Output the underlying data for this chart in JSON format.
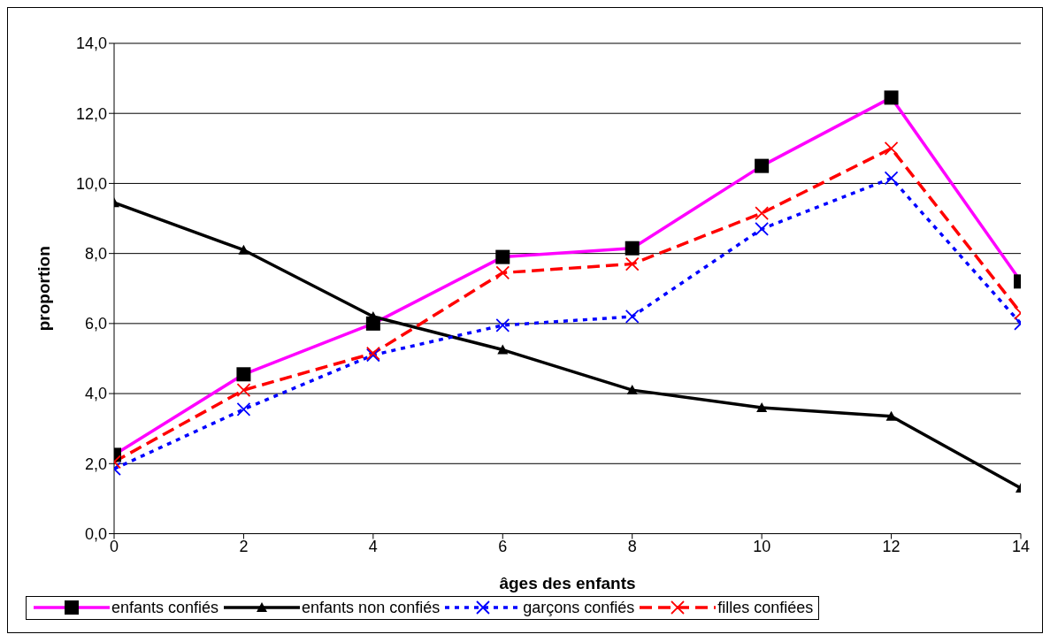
{
  "chart_data": {
    "type": "line",
    "xlabel": "âges des enfants",
    "ylabel": "proportion",
    "x": [
      0,
      2,
      4,
      6,
      8,
      10,
      12,
      14
    ],
    "xlim": [
      0,
      14
    ],
    "xticks": [
      0,
      2,
      4,
      6,
      8,
      10,
      12,
      14
    ],
    "ylim": [
      0,
      14
    ],
    "yticks": [
      {
        "value": 0,
        "label": "0,0"
      },
      {
        "value": 2,
        "label": "2,0"
      },
      {
        "value": 4,
        "label": "4,0"
      },
      {
        "value": 6,
        "label": "6,0"
      },
      {
        "value": 8,
        "label": "8,0"
      },
      {
        "value": 10,
        "label": "10,0"
      },
      {
        "value": 12,
        "label": "12,0"
      },
      {
        "value": 14,
        "label": "14,0"
      }
    ],
    "grid": "y",
    "legend": "bottom",
    "series": [
      {
        "name": "enfants confiés",
        "color": "#ff00ff",
        "marker": "square",
        "line_style": "solid",
        "values": [
          2.25,
          4.55,
          6.0,
          7.9,
          8.15,
          10.5,
          12.45,
          7.2
        ]
      },
      {
        "name": "enfants non confiés",
        "color": "#000000",
        "marker": "triangle",
        "line_style": "solid",
        "values": [
          9.45,
          8.1,
          6.2,
          5.25,
          4.1,
          3.6,
          3.35,
          1.3
        ]
      },
      {
        "name": "garçons confiés",
        "color": "#0000ff",
        "marker": "cross",
        "line_style": "dotted",
        "values": [
          1.85,
          3.55,
          5.1,
          5.95,
          6.2,
          8.7,
          10.15,
          6.0
        ]
      },
      {
        "name": "filles confiées",
        "color": "#ff0000",
        "marker": "cross",
        "line_style": "dashed",
        "values": [
          2.05,
          4.1,
          5.15,
          7.45,
          7.7,
          9.15,
          11.0,
          6.3
        ]
      }
    ]
  }
}
